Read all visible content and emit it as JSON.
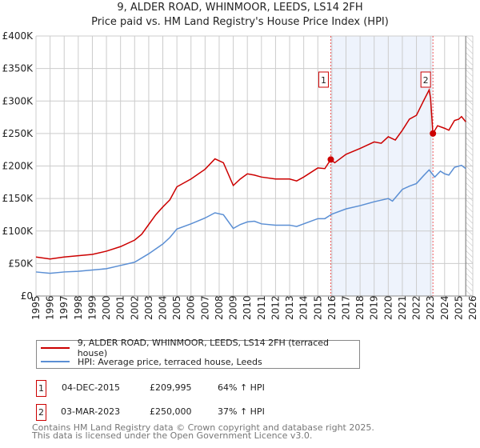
{
  "chart_data": {
    "type": "line",
    "title": "9, ALDER ROAD, WHINMOOR, LEEDS, LS14 2FH",
    "subtitle": "Price paid vs. HM Land Registry's House Price Index (HPI)",
    "xlim": [
      1995,
      2026
    ],
    "ylim": [
      0,
      400000
    ],
    "y_ticks": [
      {
        "v": 0,
        "label": "£0"
      },
      {
        "v": 50000,
        "label": "£50K"
      },
      {
        "v": 100000,
        "label": "£100K"
      },
      {
        "v": 150000,
        "label": "£150K"
      },
      {
        "v": 200000,
        "label": "£200K"
      },
      {
        "v": 250000,
        "label": "£250K"
      },
      {
        "v": 300000,
        "label": "£300K"
      },
      {
        "v": 350000,
        "label": "£350K"
      },
      {
        "v": 400000,
        "label": "£400K"
      }
    ],
    "x_ticks": [
      "1995",
      "1996",
      "1997",
      "1998",
      "1999",
      "2000",
      "2001",
      "2002",
      "2003",
      "2004",
      "2005",
      "2006",
      "2007",
      "2008",
      "2009",
      "2010",
      "2011",
      "2012",
      "2013",
      "2014",
      "2015",
      "2016",
      "2017",
      "2018",
      "2019",
      "2020",
      "2021",
      "2022",
      "2023",
      "2024",
      "2025",
      "2026"
    ],
    "grid": true,
    "shaded_range": [
      2015.92,
      2023.17
    ],
    "hatched_from": 2025.5,
    "series": [
      {
        "name": "9, ALDER ROAD, WHINMOOR, LEEDS, LS14 2FH (terraced house)",
        "color": "#cc0000",
        "x": [
          1995,
          1996,
          1997,
          1998,
          1999,
          2000,
          2001,
          2002,
          2002.5,
          2003,
          2003.5,
          2004,
          2004.5,
          2005,
          2006,
          2007,
          2007.7,
          2008.3,
          2009,
          2009.5,
          2010,
          2010.5,
          2011,
          2012,
          2013,
          2013.5,
          2014,
          2015,
          2015.5,
          2015.92,
          2016.2,
          2017,
          2018,
          2019,
          2019.5,
          2020,
          2020.5,
          2021,
          2021.5,
          2022,
          2022.5,
          2022.9,
          2023.0,
          2023.17,
          2023.5,
          2024,
          2024.3,
          2024.7,
          2025,
          2025.2,
          2025.5
        ],
        "y": [
          60000,
          57000,
          60000,
          62000,
          64000,
          69000,
          76000,
          86000,
          95000,
          110000,
          125000,
          137000,
          148000,
          168000,
          180000,
          195000,
          211000,
          205000,
          170000,
          180000,
          188000,
          186000,
          183000,
          180000,
          180000,
          177000,
          183000,
          197000,
          196000,
          209995,
          205000,
          218000,
          227000,
          237000,
          235000,
          245000,
          240000,
          255000,
          272000,
          278000,
          300000,
          317000,
          305000,
          250000,
          262000,
          258000,
          255000,
          270000,
          272000,
          276000,
          268000
        ]
      },
      {
        "name": "HPI: Average price, terraced house, Leeds",
        "color": "#5b8fd4",
        "x": [
          1995,
          1996,
          1997,
          1998,
          1999,
          2000,
          2001,
          2002,
          2003,
          2004,
          2004.5,
          2005,
          2006,
          2007,
          2007.7,
          2008.3,
          2009,
          2009.5,
          2010,
          2010.5,
          2011,
          2012,
          2013,
          2013.5,
          2014,
          2015,
          2015.5,
          2016,
          2017,
          2018,
          2019,
          2020,
          2020.3,
          2021,
          2021.5,
          2022,
          2022.5,
          2022.9,
          2023.3,
          2023.7,
          2024,
          2024.3,
          2024.7,
          2025.2,
          2025.5
        ],
        "y": [
          37000,
          35000,
          37000,
          38000,
          40000,
          42000,
          47000,
          52000,
          65000,
          80000,
          90000,
          103000,
          111000,
          120000,
          128000,
          125000,
          104000,
          110000,
          114000,
          115000,
          111000,
          109000,
          109000,
          107000,
          111000,
          119000,
          119000,
          126000,
          134000,
          139000,
          145000,
          150000,
          146000,
          164000,
          169000,
          173000,
          185000,
          194000,
          183000,
          192000,
          188000,
          186000,
          198000,
          201000,
          196000
        ]
      }
    ],
    "sales": [
      {
        "id": "1",
        "x": 2015.92,
        "y": 209995,
        "date": "04-DEC-2015",
        "price": "£209,995",
        "hpi": "64% ↑ HPI"
      },
      {
        "id": "2",
        "x": 2023.17,
        "y": 250000,
        "date": "03-MAR-2023",
        "price": "£250,000",
        "hpi": "37% ↑ HPI"
      }
    ]
  },
  "footer": {
    "line1": "Contains HM Land Registry data © Crown copyright and database right 2025.",
    "line2": "This data is licensed under the Open Government Licence v3.0."
  }
}
